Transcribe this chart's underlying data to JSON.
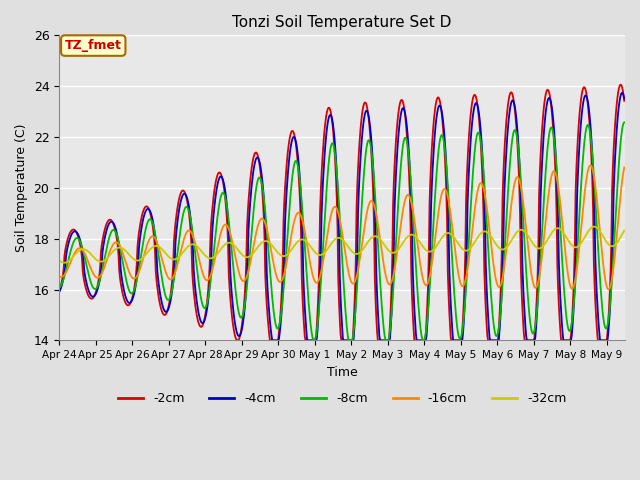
{
  "title": "Tonzi Soil Temperature Set D",
  "xlabel": "Time",
  "ylabel": "Soil Temperature (C)",
  "ylim": [
    14,
    26
  ],
  "n_days": 15.5,
  "series_labels": [
    "-2cm",
    "-4cm",
    "-8cm",
    "-16cm",
    "-32cm"
  ],
  "series_colors": [
    "#dd0000",
    "#0000cc",
    "#00bb00",
    "#ff8800",
    "#cccc00"
  ],
  "tick_labels": [
    "Apr 24",
    "Apr 25",
    "Apr 26",
    "Apr 27",
    "Apr 28",
    "Apr 29",
    "Apr 30",
    "May 1",
    "May 2",
    "May 3",
    "May 4",
    "May 5",
    "May 6",
    "May 7",
    "May 8",
    "May 9"
  ],
  "background_color": "#e0e0e0",
  "axes_facecolor": "#e8e8e8",
  "label_box_color": "#ffffcc",
  "label_box_edge": "#aa6600",
  "label_text": "TZ_fmet",
  "label_text_color": "#cc0000",
  "yticks": [
    14,
    16,
    18,
    20,
    22,
    24,
    26
  ]
}
